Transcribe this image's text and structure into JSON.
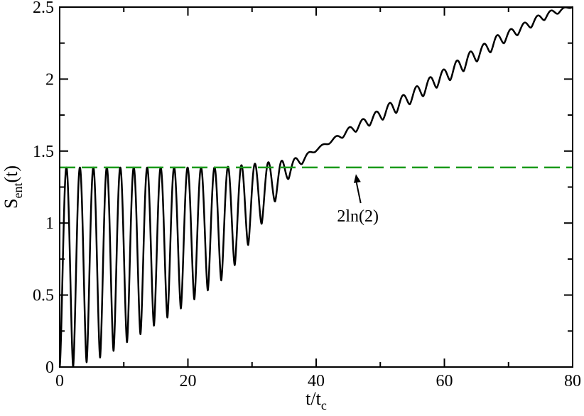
{
  "chart_data": {
    "type": "line",
    "title": "",
    "xlabel": {
      "main": "t/t",
      "sub": "c"
    },
    "ylabel": {
      "main": "S",
      "sub": "ent",
      "suffix": "(t)"
    },
    "xlim": [
      0,
      80
    ],
    "ylim": [
      0,
      2.5
    ],
    "xticks": [
      "0",
      "20",
      "40",
      "60",
      "80"
    ],
    "yticks": [
      "0",
      "0.5",
      "1",
      "1.5",
      "2",
      "2.5"
    ],
    "grid": false,
    "legend": "none",
    "series": [
      {
        "color": "#000000",
        "style": "solid",
        "oscillation_period": 2.1,
        "x": [
          0,
          2,
          4,
          6,
          8,
          10,
          12,
          14,
          16,
          18,
          20,
          22,
          24,
          26,
          28,
          30,
          32,
          34,
          36,
          38,
          40,
          42,
          44,
          46,
          48,
          50,
          52,
          54,
          56,
          58,
          60,
          62,
          64,
          66,
          68,
          70,
          72,
          74,
          76,
          78,
          80
        ],
        "envelope_max": [
          1.386,
          1.386,
          1.386,
          1.386,
          1.386,
          1.386,
          1.386,
          1.386,
          1.386,
          1.386,
          1.386,
          1.386,
          1.386,
          1.39,
          1.4,
          1.41,
          1.42,
          1.43,
          1.44,
          1.47,
          1.52,
          1.57,
          1.63,
          1.69,
          1.74,
          1.79,
          1.85,
          1.9,
          1.96,
          2.02,
          2.07,
          2.13,
          2.19,
          2.24,
          2.3,
          2.34,
          2.38,
          2.43,
          2.47,
          2.49,
          2.51
        ],
        "envelope_min": [
          0.0,
          0.0,
          0.03,
          0.06,
          0.1,
          0.16,
          0.21,
          0.27,
          0.32,
          0.38,
          0.44,
          0.5,
          0.56,
          0.63,
          0.75,
          0.89,
          1.03,
          1.18,
          1.33,
          1.42,
          1.5,
          1.55,
          1.59,
          1.63,
          1.67,
          1.71,
          1.75,
          1.81,
          1.86,
          1.92,
          1.97,
          2.02,
          2.09,
          2.15,
          2.21,
          2.27,
          2.32,
          2.37,
          2.42,
          2.46,
          2.5
        ]
      },
      {
        "color": "#1a9a1a",
        "style": "dashed",
        "x": [
          0,
          80
        ],
        "y": [
          1.386,
          1.386
        ]
      }
    ],
    "annotations": [
      {
        "text": "2ln(2)",
        "x": 46.5,
        "y": 1.05,
        "arrow_to": [
          46.2,
          1.34
        ]
      }
    ]
  }
}
